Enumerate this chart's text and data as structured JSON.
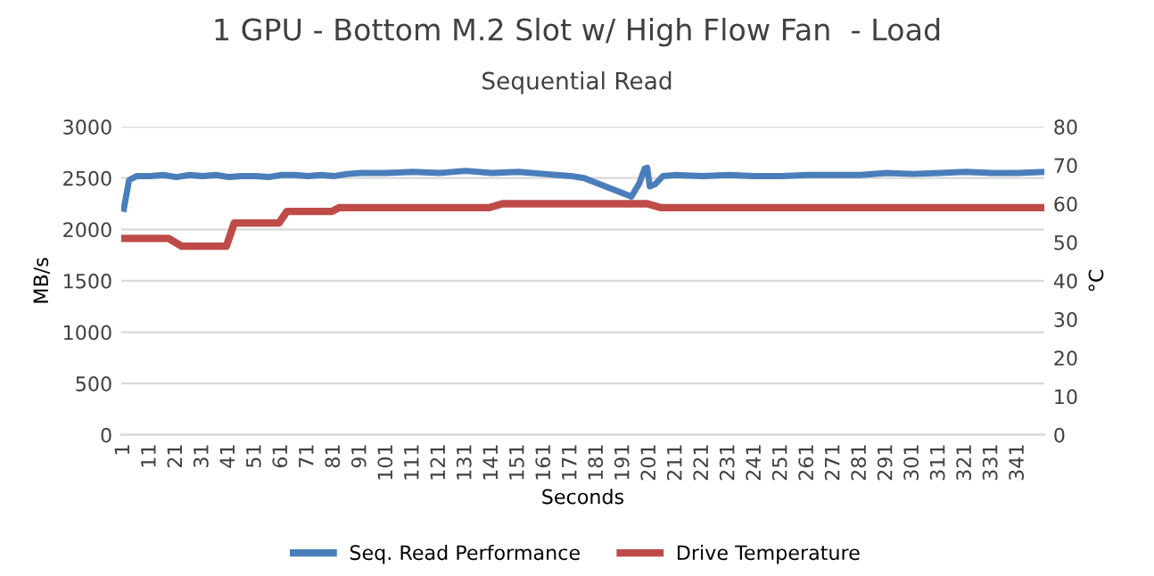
{
  "chart_data": {
    "type": "line",
    "title": "1 GPU - Bottom M.2 Slot w/ High Flow Fan  - Load",
    "subtitle": "Sequential Read",
    "xlabel": "Seconds",
    "ylabel": "MB/s",
    "y2label": "°C",
    "series": [
      {
        "name": "Seq. Read Performance",
        "color": "#4a7ebb",
        "x": [
          1,
          3,
          6,
          11,
          16,
          21,
          26,
          31,
          36,
          41,
          46,
          51,
          56,
          61,
          66,
          71,
          76,
          81,
          86,
          91,
          101,
          111,
          121,
          131,
          141,
          151,
          161,
          171,
          176,
          181,
          186,
          191,
          194,
          197,
          199,
          200,
          201,
          203,
          206,
          211,
          221,
          231,
          241,
          251,
          261,
          271,
          281,
          291,
          301,
          311,
          321,
          331,
          341,
          350
        ],
        "values": [
          2200,
          2480,
          2520,
          2520,
          2530,
          2510,
          2530,
          2520,
          2530,
          2510,
          2520,
          2520,
          2510,
          2530,
          2530,
          2520,
          2530,
          2520,
          2540,
          2550,
          2550,
          2560,
          2550,
          2570,
          2550,
          2560,
          2540,
          2520,
          2500,
          2450,
          2400,
          2350,
          2320,
          2450,
          2590,
          2600,
          2420,
          2440,
          2520,
          2530,
          2520,
          2530,
          2520,
          2520,
          2530,
          2530,
          2530,
          2550,
          2540,
          2550,
          2560,
          2550,
          2550,
          2560
        ]
      },
      {
        "name": "Drive Temperature",
        "color": "#be4b48",
        "axis": "y2",
        "x": [
          1,
          18,
          23,
          40,
          43,
          60,
          63,
          80,
          83,
          140,
          145,
          200,
          205,
          350
        ],
        "values": [
          51,
          51,
          49,
          49,
          55,
          55,
          58,
          58,
          59,
          59,
          60,
          60,
          59,
          59
        ]
      }
    ],
    "xlim": [
      0,
      351
    ],
    "xticks": [
      1,
      11,
      21,
      31,
      41,
      51,
      61,
      71,
      81,
      91,
      101,
      111,
      121,
      131,
      141,
      151,
      161,
      171,
      181,
      191,
      201,
      211,
      221,
      231,
      241,
      251,
      261,
      271,
      281,
      291,
      301,
      311,
      321,
      331,
      341
    ],
    "ylim": [
      0,
      3000
    ],
    "yticks": [
      0,
      500,
      1000,
      1500,
      2000,
      2500,
      3000
    ],
    "y2lim": [
      0,
      80
    ],
    "y2ticks": [
      0,
      10,
      20,
      30,
      40,
      50,
      60,
      70,
      80
    ],
    "grid": "y",
    "legend": "bottom",
    "marker": "none",
    "line_style": "solid"
  }
}
